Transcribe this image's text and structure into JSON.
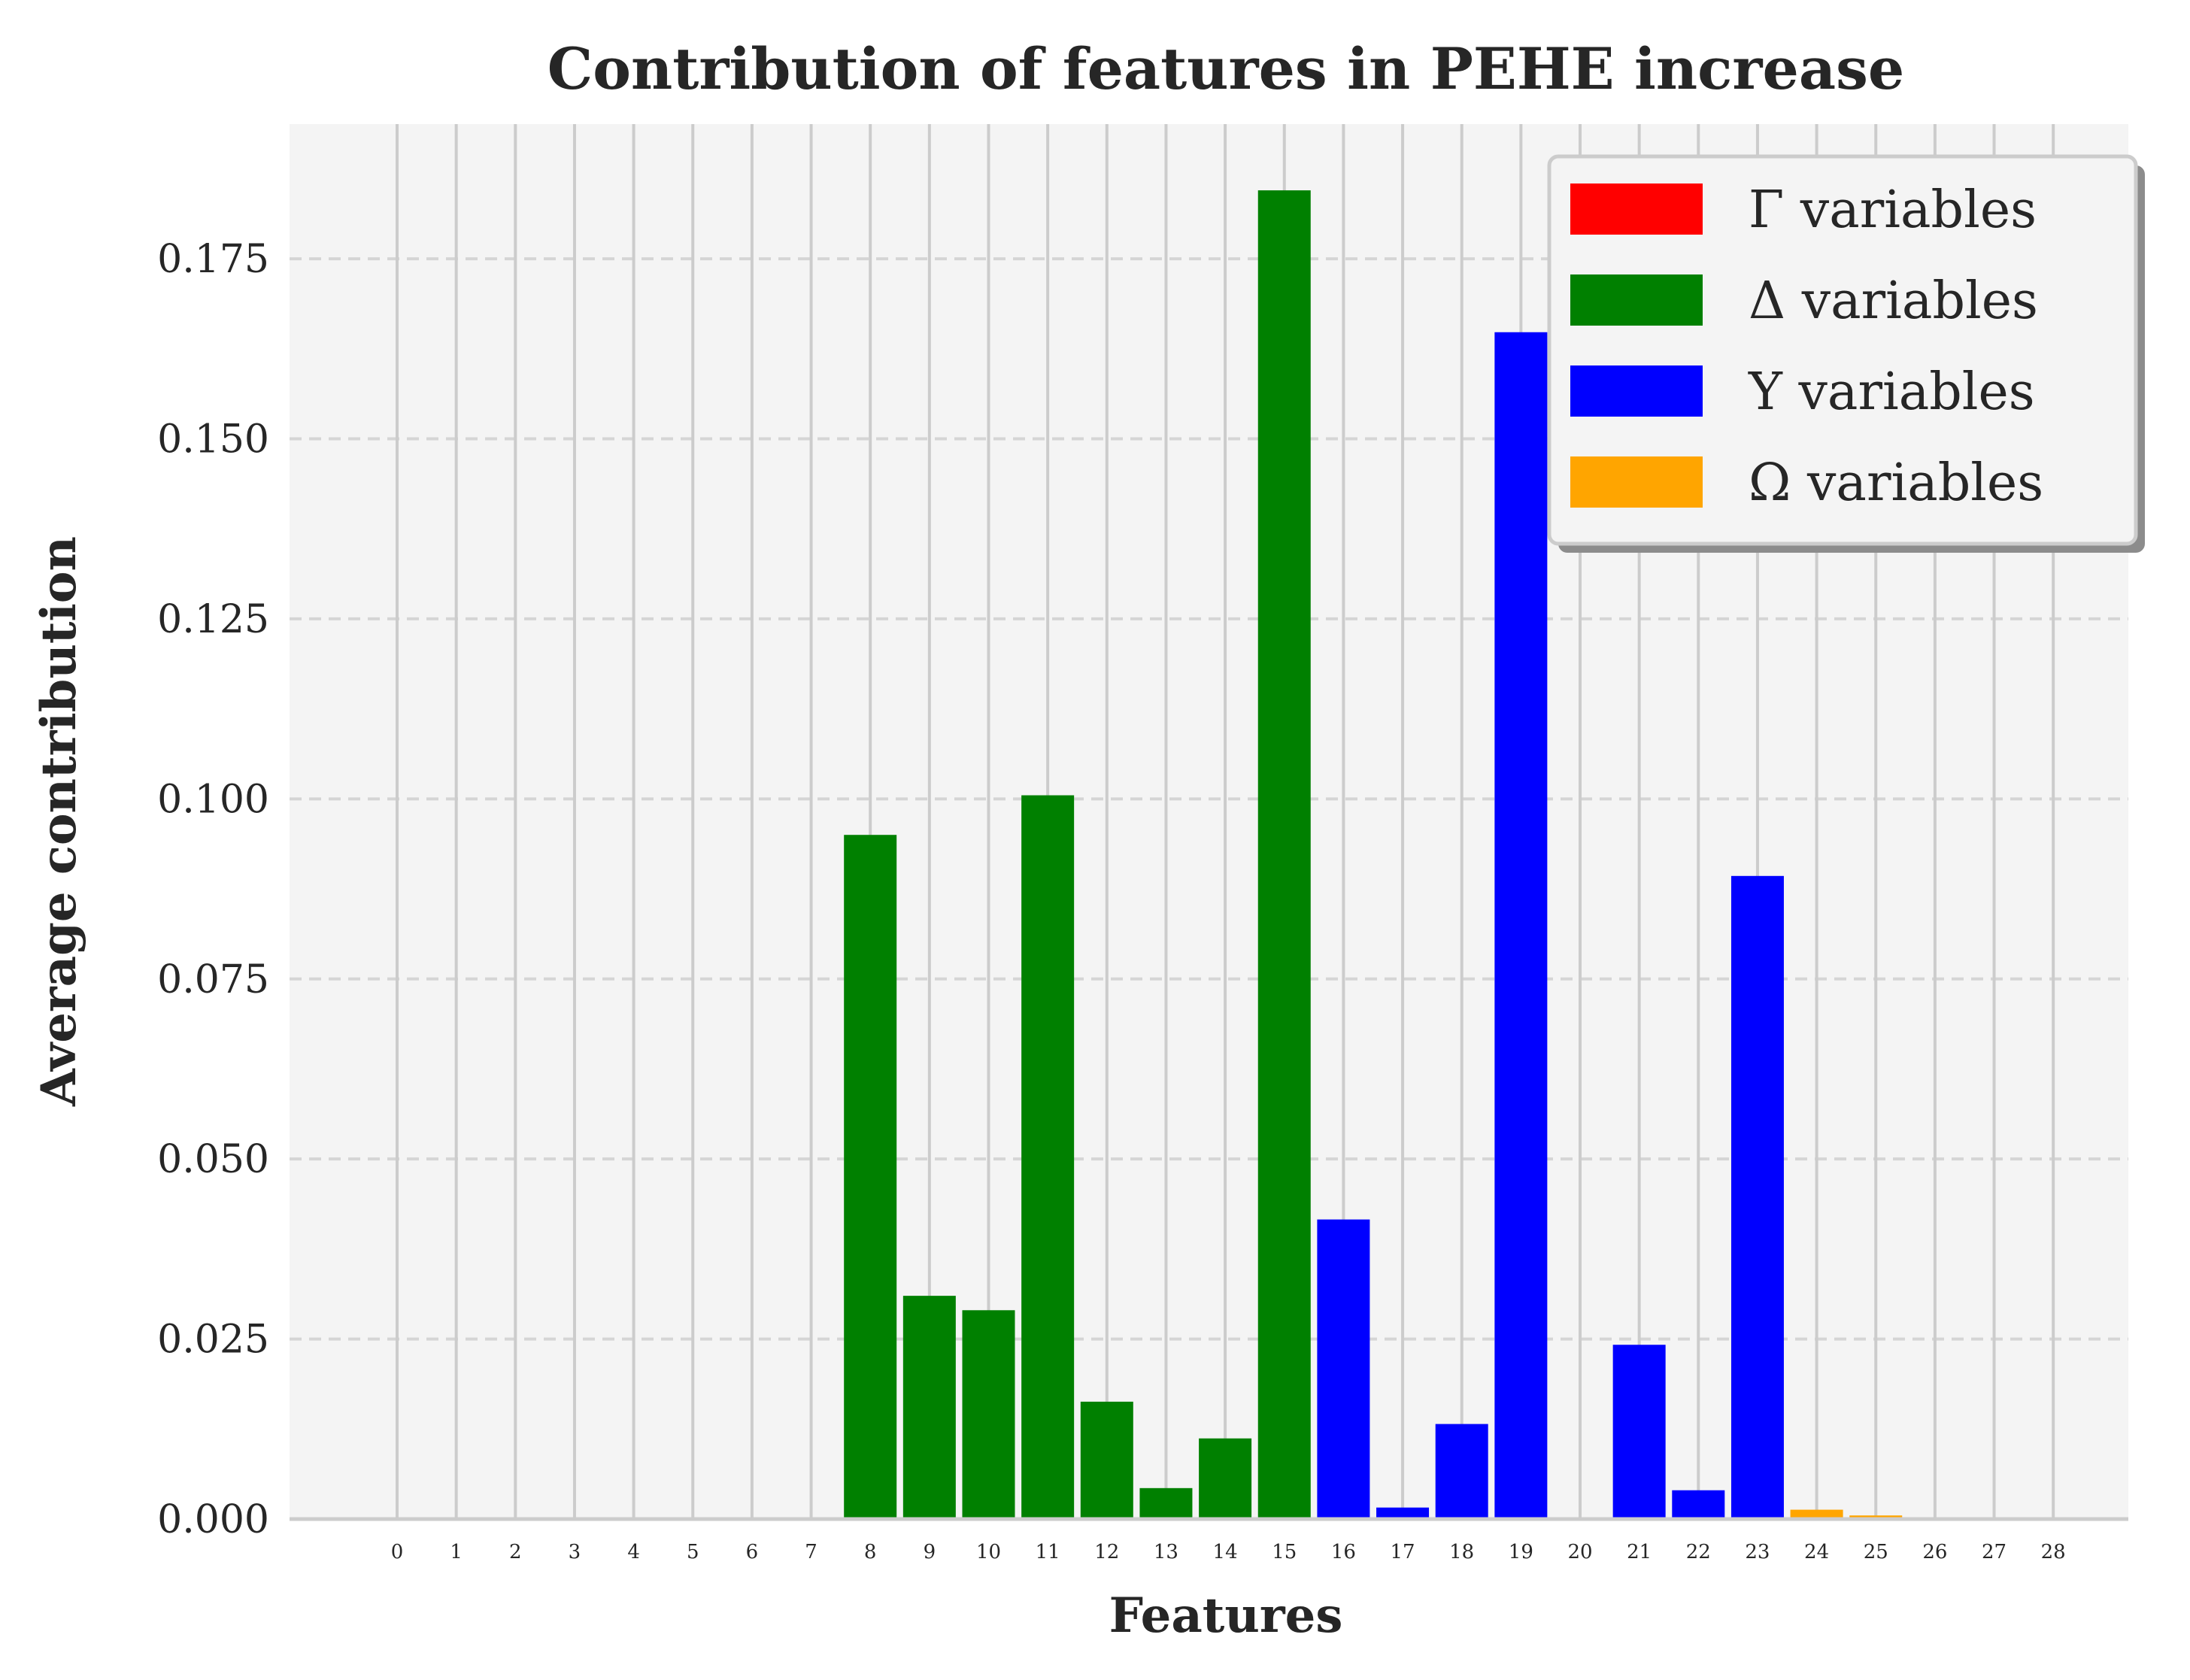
{
  "chart_data": {
    "type": "bar",
    "title": "Contribution of features in PEHE increase",
    "xlabel": "Features",
    "ylabel": "Average contribution",
    "categories": [
      "0",
      "1",
      "2",
      "3",
      "4",
      "5",
      "6",
      "7",
      "8",
      "9",
      "10",
      "11",
      "12",
      "13",
      "14",
      "15",
      "16",
      "17",
      "18",
      "19",
      "20",
      "21",
      "22",
      "23",
      "24",
      "25",
      "26",
      "27",
      "28"
    ],
    "values": [
      0,
      0,
      0,
      0,
      0,
      0,
      0,
      0,
      0.095,
      0.031,
      0.029,
      0.1005,
      0.0163,
      0.0043,
      0.0112,
      0.1845,
      0.0416,
      0.0016,
      0.0132,
      0.1648,
      0,
      0.0242,
      0.004,
      0.0893,
      0.0013,
      0.0005,
      0,
      0,
      0
    ],
    "groups": [
      "Γ",
      "Γ",
      "Γ",
      "Γ",
      "Γ",
      "Γ",
      "Γ",
      "Γ",
      "Δ",
      "Δ",
      "Δ",
      "Δ",
      "Δ",
      "Δ",
      "Δ",
      "Δ",
      "Υ",
      "Υ",
      "Υ",
      "Υ",
      "Υ",
      "Υ",
      "Υ",
      "Υ",
      "Ω",
      "Ω",
      "Ω",
      "Ω",
      "Ω"
    ],
    "legend": [
      {
        "key": "Γ",
        "label": "Γ variables",
        "color": "#ff0000"
      },
      {
        "key": "Δ",
        "label": "Δ variables",
        "color": "#008000"
      },
      {
        "key": "Υ",
        "label": "Υ variables",
        "color": "#0000ff"
      },
      {
        "key": "Ω",
        "label": "Ω variables",
        "color": "#ffa500"
      }
    ],
    "yticks": [
      "0.000",
      "0.025",
      "0.050",
      "0.075",
      "0.100",
      "0.125",
      "0.150",
      "0.175"
    ],
    "ylim": [
      0,
      0.1937
    ],
    "grid": true,
    "legend_position": "top-right"
  }
}
